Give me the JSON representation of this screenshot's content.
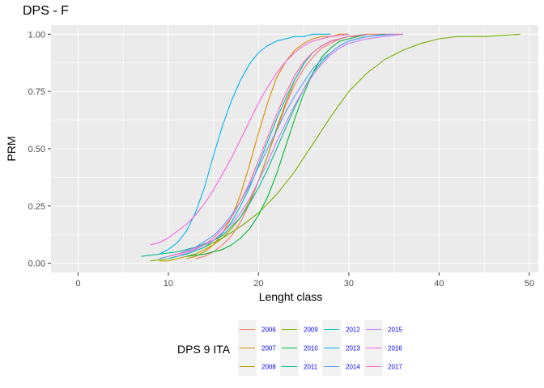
{
  "chart_data": {
    "type": "line",
    "title": "DPS - F",
    "xlabel": "Lenght class",
    "ylabel": "PRM",
    "xlim": [
      -3,
      51
    ],
    "ylim": [
      -0.04,
      1.04
    ],
    "x_ticks": [
      0,
      10,
      20,
      30,
      40,
      50
    ],
    "x_tick_labels": [
      "0",
      "10",
      "20",
      "30",
      "40",
      "50"
    ],
    "y_ticks": [
      0,
      0.25,
      0.5,
      0.75,
      1
    ],
    "y_tick_labels": [
      "0.00",
      "0.25",
      "0.50",
      "0.75",
      "1.00"
    ],
    "grid": true,
    "legend": {
      "title": "DPS 9 ITA",
      "position": "bottom",
      "columns": 4
    },
    "series": [
      {
        "name": "2006",
        "color": "#F8766D",
        "x": [
          13,
          14,
          15,
          16,
          17,
          18,
          19,
          20,
          21,
          22,
          23,
          24,
          25,
          26,
          27,
          28,
          29,
          30,
          31,
          32,
          34,
          36
        ],
        "y": [
          0.02,
          0.03,
          0.05,
          0.08,
          0.12,
          0.18,
          0.26,
          0.36,
          0.47,
          0.58,
          0.69,
          0.78,
          0.85,
          0.9,
          0.94,
          0.96,
          0.98,
          0.99,
          0.99,
          1.0,
          1.0,
          1.0
        ]
      },
      {
        "name": "2007",
        "color": "#DE8C00",
        "x": [
          12,
          13,
          14,
          15,
          16,
          17,
          18,
          19,
          20,
          21,
          22,
          23,
          24,
          25,
          26,
          27,
          28,
          29,
          30
        ],
        "y": [
          0.02,
          0.03,
          0.05,
          0.08,
          0.13,
          0.2,
          0.3,
          0.43,
          0.57,
          0.7,
          0.81,
          0.88,
          0.93,
          0.96,
          0.98,
          0.99,
          0.99,
          1.0,
          1.0
        ]
      },
      {
        "name": "2008",
        "color": "#B79F00",
        "x": [
          9,
          10,
          11,
          12,
          13,
          14,
          15,
          16,
          17,
          18,
          19,
          20,
          21,
          22,
          23,
          24,
          25,
          26,
          27,
          28,
          29,
          30,
          32
        ],
        "y": [
          0.01,
          0.01,
          0.02,
          0.03,
          0.04,
          0.06,
          0.08,
          0.11,
          0.15,
          0.2,
          0.27,
          0.36,
          0.47,
          0.59,
          0.7,
          0.8,
          0.87,
          0.92,
          0.95,
          0.97,
          0.98,
          0.99,
          1.0
        ]
      },
      {
        "name": "2009",
        "color": "#7CAE00",
        "x": [
          8,
          10,
          12,
          14,
          16,
          18,
          20,
          22,
          24,
          26,
          28,
          30,
          32,
          34,
          36,
          38,
          40,
          42,
          45,
          49
        ],
        "y": [
          0.01,
          0.02,
          0.04,
          0.07,
          0.11,
          0.16,
          0.22,
          0.3,
          0.4,
          0.52,
          0.64,
          0.75,
          0.83,
          0.89,
          0.93,
          0.96,
          0.98,
          0.99,
          0.99,
          1.0
        ]
      },
      {
        "name": "2010",
        "color": "#00BA38",
        "x": [
          12,
          14,
          16,
          17,
          18,
          19,
          20,
          21,
          22,
          23,
          24,
          25,
          26,
          27,
          28,
          29,
          30,
          31,
          32
        ],
        "y": [
          0.03,
          0.04,
          0.06,
          0.08,
          0.11,
          0.15,
          0.21,
          0.29,
          0.39,
          0.51,
          0.63,
          0.74,
          0.83,
          0.9,
          0.94,
          0.97,
          0.98,
          0.99,
          1.0
        ]
      },
      {
        "name": "2011",
        "color": "#00C08B",
        "x": [
          7,
          9,
          11,
          13,
          15,
          16,
          17,
          18,
          19,
          20,
          21,
          22,
          23,
          24,
          25,
          26,
          27,
          28,
          29,
          30,
          32,
          34
        ],
        "y": [
          0.03,
          0.04,
          0.05,
          0.07,
          0.1,
          0.12,
          0.16,
          0.2,
          0.26,
          0.33,
          0.41,
          0.5,
          0.59,
          0.68,
          0.76,
          0.83,
          0.88,
          0.92,
          0.95,
          0.97,
          0.99,
          1.0
        ]
      },
      {
        "name": "2012",
        "color": "#00BFC4",
        "x": [
          10,
          12,
          14,
          16,
          17,
          18,
          19,
          20,
          21,
          22,
          23,
          24,
          25,
          26,
          27,
          28,
          30,
          32
        ],
        "y": [
          0.02,
          0.04,
          0.07,
          0.13,
          0.18,
          0.25,
          0.33,
          0.43,
          0.53,
          0.63,
          0.72,
          0.8,
          0.87,
          0.92,
          0.95,
          0.97,
          0.99,
          1.0
        ]
      },
      {
        "name": "2013",
        "color": "#00B4F0",
        "x": [
          9,
          10,
          11,
          12,
          13,
          14,
          15,
          16,
          17,
          18,
          19,
          20,
          21,
          22,
          23,
          24,
          25,
          26,
          27,
          28
        ],
        "y": [
          0.04,
          0.06,
          0.09,
          0.14,
          0.22,
          0.33,
          0.47,
          0.6,
          0.71,
          0.8,
          0.87,
          0.92,
          0.95,
          0.97,
          0.98,
          0.99,
          0.99,
          1.0,
          1.0,
          1.0
        ]
      },
      {
        "name": "2014",
        "color": "#619CFF",
        "x": [
          9,
          11,
          13,
          15,
          16,
          17,
          18,
          19,
          20,
          21,
          22,
          23,
          24,
          25,
          26,
          27,
          28,
          29,
          30,
          32,
          35
        ],
        "y": [
          0.02,
          0.04,
          0.07,
          0.12,
          0.16,
          0.21,
          0.27,
          0.34,
          0.42,
          0.5,
          0.58,
          0.66,
          0.73,
          0.79,
          0.85,
          0.89,
          0.92,
          0.95,
          0.97,
          0.99,
          1.0
        ]
      },
      {
        "name": "2015",
        "color": "#C77CFF",
        "x": [
          11,
          13,
          15,
          17,
          18,
          19,
          20,
          21,
          22,
          23,
          24,
          25,
          26,
          27,
          28,
          29,
          30,
          32,
          34,
          36
        ],
        "y": [
          0.03,
          0.06,
          0.1,
          0.17,
          0.22,
          0.28,
          0.36,
          0.44,
          0.53,
          0.61,
          0.69,
          0.76,
          0.82,
          0.87,
          0.91,
          0.94,
          0.96,
          0.98,
          0.99,
          1.0
        ]
      },
      {
        "name": "2016",
        "color": "#F564E3",
        "x": [
          8,
          9,
          10,
          11,
          12,
          13,
          14,
          15,
          16,
          17,
          18,
          19,
          20,
          21,
          22,
          23,
          24,
          25,
          26,
          28,
          30
        ],
        "y": [
          0.08,
          0.09,
          0.11,
          0.14,
          0.17,
          0.21,
          0.26,
          0.32,
          0.39,
          0.46,
          0.54,
          0.62,
          0.7,
          0.77,
          0.83,
          0.88,
          0.92,
          0.95,
          0.97,
          0.99,
          1.0
        ]
      },
      {
        "name": "2017",
        "color": "#FF64B0",
        "x": [
          10,
          12,
          14,
          15,
          16,
          17,
          18,
          19,
          20,
          21,
          22,
          23,
          24,
          25,
          26,
          27,
          28,
          29,
          30,
          32
        ],
        "y": [
          0.03,
          0.05,
          0.08,
          0.11,
          0.15,
          0.2,
          0.27,
          0.35,
          0.45,
          0.55,
          0.65,
          0.74,
          0.82,
          0.88,
          0.92,
          0.95,
          0.97,
          0.98,
          0.99,
          1.0
        ]
      }
    ]
  }
}
